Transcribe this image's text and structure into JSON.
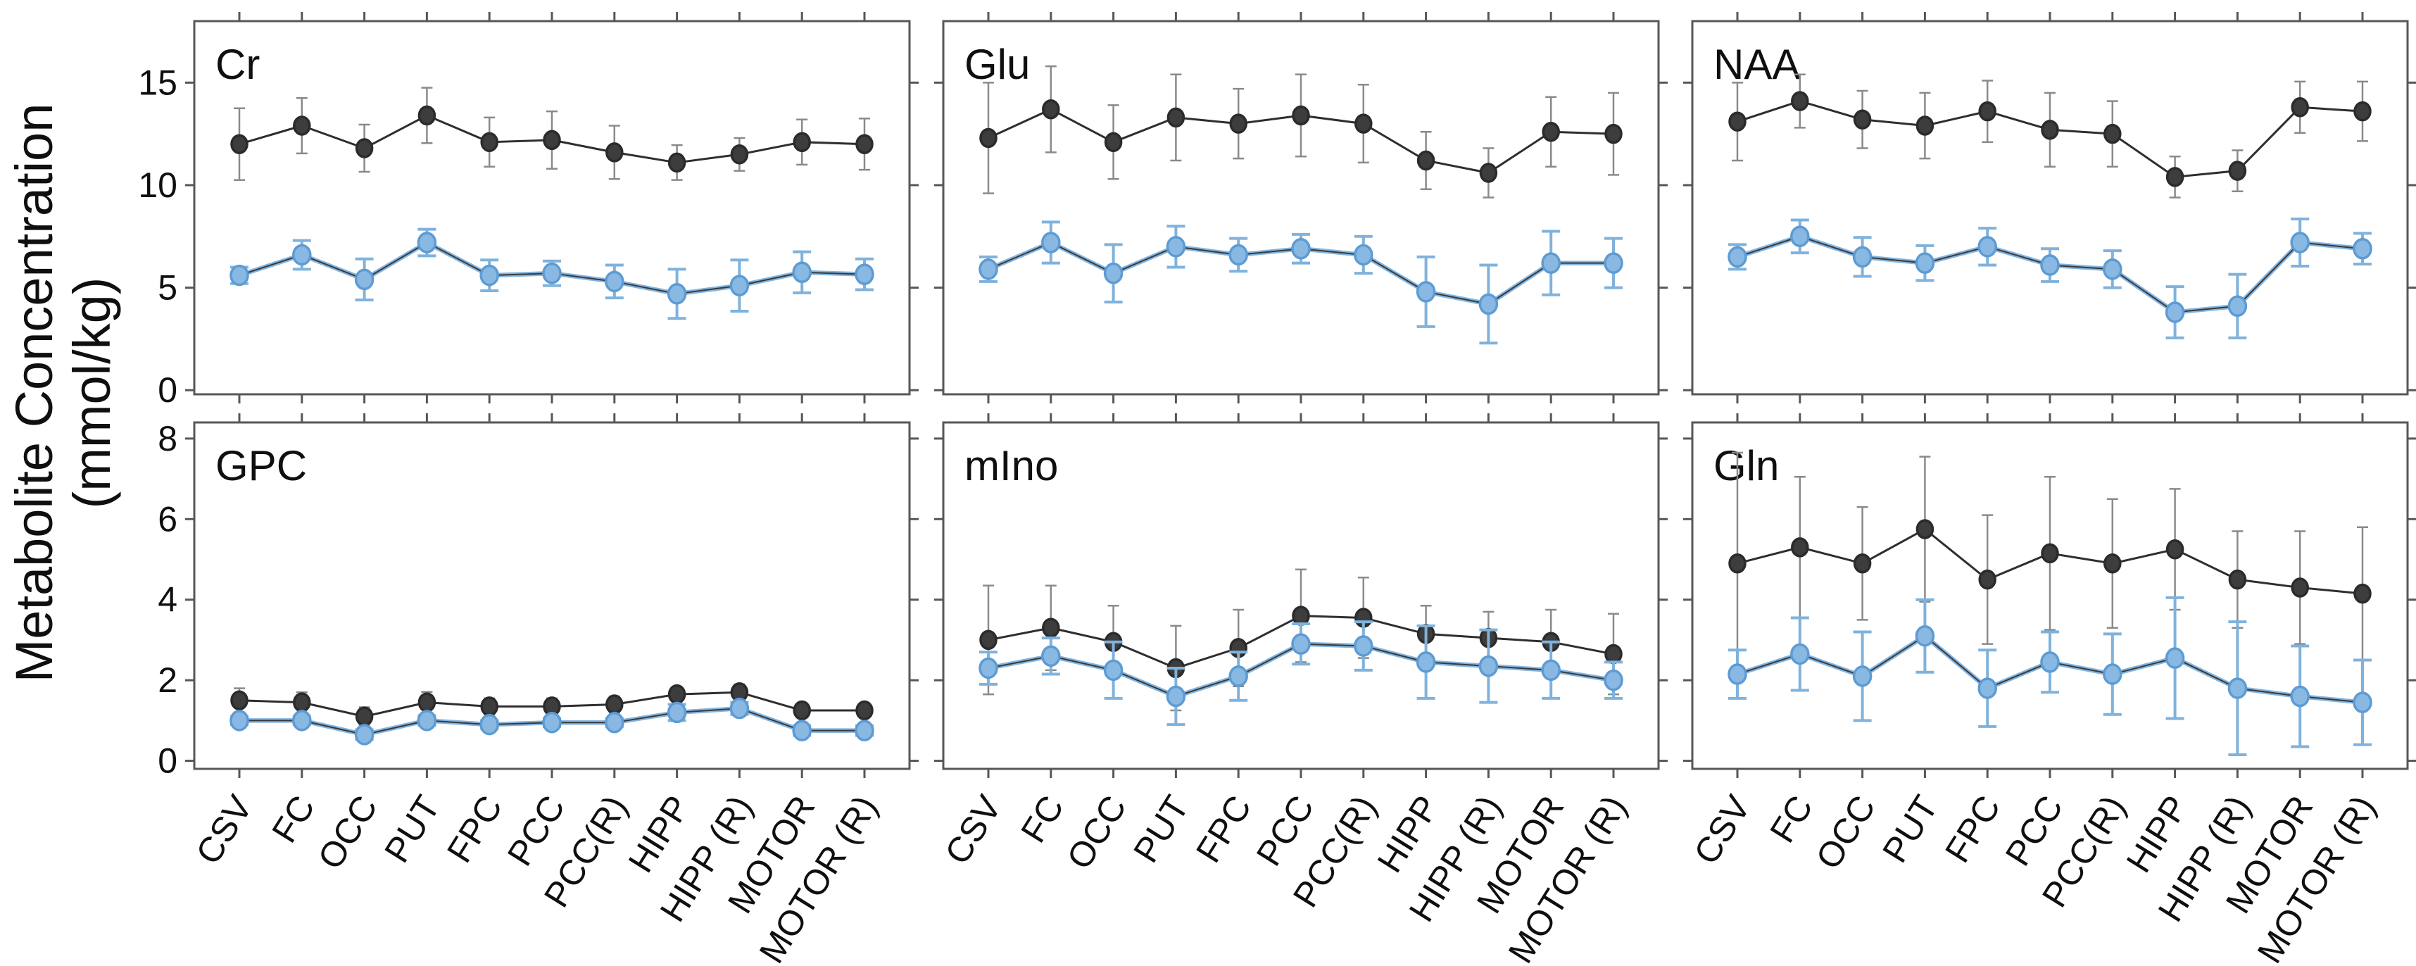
{
  "figure": {
    "y_axis_label_line1": "Metabolite Concentration",
    "y_axis_label_line2": "(mmol/kg)",
    "background_color": "#ffffff",
    "spine_color": "#575757",
    "series_style": {
      "series1_name": "dark",
      "series1_marker_color": "#3d3d3d",
      "series1_marker_edge": "#2b2b2b",
      "series1_line_color": "#2e2e2e",
      "series1_errorbar_color": "#8a8a8a",
      "series2_name": "blue",
      "series2_marker_color": "#89b9e3",
      "series2_marker_edge": "#5d9bd3",
      "series2_line_color": "#84b5e1",
      "series2_core_line_color": "#3a3a3a",
      "series2_errorbar_color": "#7fb2dc"
    }
  },
  "chart_data": [
    {
      "type": "line",
      "title": "Cr",
      "row": 0,
      "col": 0,
      "ylim": [
        -0.2,
        18.0
      ],
      "yticks": [
        0,
        5,
        10,
        15
      ],
      "show_ytick_labels": true,
      "show_xtick_labels": false,
      "grid": false,
      "categories": [
        "CSV",
        "FC",
        "OCC",
        "PUT",
        "FPC",
        "PCC",
        "PCC(R)",
        "HIPP",
        "HIPP (R)",
        "MOTOR",
        "MOTOR (R)"
      ],
      "series": [
        {
          "name": "dark",
          "values": [
            12.0,
            12.9,
            11.8,
            13.4,
            12.1,
            12.2,
            11.6,
            11.1,
            11.5,
            12.1,
            12.0
          ],
          "errors": [
            1.75,
            1.35,
            1.15,
            1.35,
            1.2,
            1.4,
            1.3,
            0.85,
            0.8,
            1.1,
            1.25
          ]
        },
        {
          "name": "blue",
          "values": [
            5.6,
            6.6,
            5.4,
            7.2,
            5.6,
            5.7,
            5.3,
            4.7,
            5.1,
            5.75,
            5.65
          ],
          "errors": [
            0.4,
            0.7,
            1.0,
            0.65,
            0.75,
            0.6,
            0.8,
            1.2,
            1.25,
            1.0,
            0.75
          ]
        }
      ]
    },
    {
      "type": "line",
      "title": "Glu",
      "row": 0,
      "col": 1,
      "ylim": [
        -0.2,
        18.0
      ],
      "yticks": [
        0,
        5,
        10,
        15
      ],
      "show_ytick_labels": false,
      "show_xtick_labels": false,
      "grid": false,
      "categories": [
        "CSV",
        "FC",
        "OCC",
        "PUT",
        "FPC",
        "PCC",
        "PCC(R)",
        "HIPP",
        "HIPP (R)",
        "MOTOR",
        "MOTOR (R)"
      ],
      "series": [
        {
          "name": "dark",
          "values": [
            12.3,
            13.7,
            12.1,
            13.3,
            13.0,
            13.4,
            13.0,
            11.2,
            10.6,
            12.6,
            12.5
          ],
          "errors": [
            2.7,
            2.1,
            1.8,
            2.1,
            1.7,
            2.0,
            1.9,
            1.4,
            1.2,
            1.7,
            2.0
          ]
        },
        {
          "name": "blue",
          "values": [
            5.9,
            7.2,
            5.7,
            7.0,
            6.6,
            6.9,
            6.6,
            4.8,
            4.2,
            6.2,
            6.2
          ],
          "errors": [
            0.6,
            1.0,
            1.4,
            1.0,
            0.8,
            0.7,
            0.9,
            1.7,
            1.9,
            1.55,
            1.2
          ]
        }
      ]
    },
    {
      "type": "line",
      "title": "NAA",
      "row": 0,
      "col": 2,
      "ylim": [
        -0.2,
        18.0
      ],
      "yticks": [
        0,
        5,
        10,
        15
      ],
      "show_ytick_labels": false,
      "show_xtick_labels": false,
      "grid": false,
      "categories": [
        "CSV",
        "FC",
        "OCC",
        "PUT",
        "FPC",
        "PCC",
        "PCC(R)",
        "HIPP",
        "HIPP (R)",
        "MOTOR",
        "MOTOR (R)"
      ],
      "series": [
        {
          "name": "dark",
          "values": [
            13.1,
            14.1,
            13.2,
            12.9,
            13.6,
            12.7,
            12.5,
            10.4,
            10.7,
            13.8,
            13.6
          ],
          "errors": [
            1.9,
            1.3,
            1.4,
            1.6,
            1.5,
            1.8,
            1.6,
            1.0,
            1.0,
            1.25,
            1.45
          ]
        },
        {
          "name": "blue",
          "values": [
            6.5,
            7.5,
            6.5,
            6.2,
            7.0,
            6.1,
            5.9,
            3.8,
            4.1,
            7.2,
            6.9
          ],
          "errors": [
            0.6,
            0.8,
            0.95,
            0.85,
            0.9,
            0.8,
            0.9,
            1.25,
            1.55,
            1.15,
            0.75
          ]
        }
      ]
    },
    {
      "type": "line",
      "title": "GPC",
      "row": 1,
      "col": 0,
      "ylim": [
        -0.2,
        8.4
      ],
      "yticks": [
        0,
        2,
        4,
        6,
        8
      ],
      "show_ytick_labels": true,
      "show_xtick_labels": true,
      "grid": false,
      "categories": [
        "CSV",
        "FC",
        "OCC",
        "PUT",
        "FPC",
        "PCC",
        "PCC(R)",
        "HIPP",
        "HIPP (R)",
        "MOTOR",
        "MOTOR (R)"
      ],
      "series": [
        {
          "name": "dark",
          "values": [
            1.5,
            1.45,
            1.1,
            1.45,
            1.35,
            1.35,
            1.4,
            1.65,
            1.7,
            1.25,
            1.25
          ],
          "errors": [
            0.3,
            0.25,
            0.23,
            0.26,
            0.2,
            0.2,
            0.2,
            0.15,
            0.2,
            0.15,
            0.15
          ]
        },
        {
          "name": "blue",
          "values": [
            1.0,
            1.0,
            0.65,
            1.0,
            0.9,
            0.95,
            0.95,
            1.2,
            1.3,
            0.75,
            0.75
          ],
          "errors": [
            0.1,
            0.1,
            0.12,
            0.12,
            0.1,
            0.1,
            0.1,
            0.2,
            0.15,
            0.12,
            0.12
          ]
        }
      ]
    },
    {
      "type": "line",
      "title": "mIno",
      "row": 1,
      "col": 1,
      "ylim": [
        -0.2,
        8.4
      ],
      "yticks": [
        0,
        2,
        4,
        6,
        8
      ],
      "show_ytick_labels": false,
      "show_xtick_labels": true,
      "grid": false,
      "categories": [
        "CSV",
        "FC",
        "OCC",
        "PUT",
        "FPC",
        "PCC",
        "PCC(R)",
        "HIPP",
        "HIPP (R)",
        "MOTOR",
        "MOTOR (R)"
      ],
      "series": [
        {
          "name": "dark",
          "values": [
            3.0,
            3.3,
            2.95,
            2.3,
            2.8,
            3.6,
            3.55,
            3.15,
            3.05,
            2.95,
            2.65
          ],
          "errors": [
            1.35,
            1.05,
            0.9,
            1.05,
            0.95,
            1.15,
            1.0,
            0.7,
            0.65,
            0.8,
            1.0
          ]
        },
        {
          "name": "blue",
          "values": [
            2.3,
            2.6,
            2.25,
            1.6,
            2.1,
            2.9,
            2.85,
            2.45,
            2.35,
            2.25,
            2.0
          ],
          "errors": [
            0.4,
            0.45,
            0.7,
            0.7,
            0.6,
            0.5,
            0.6,
            0.9,
            0.9,
            0.7,
            0.45
          ]
        }
      ]
    },
    {
      "type": "line",
      "title": "Gln",
      "row": 1,
      "col": 2,
      "ylim": [
        -0.2,
        8.4
      ],
      "yticks": [
        0,
        2,
        4,
        6,
        8
      ],
      "show_ytick_labels": false,
      "show_xtick_labels": true,
      "grid": false,
      "categories": [
        "CSV",
        "FC",
        "OCC",
        "PUT",
        "FPC",
        "PCC",
        "PCC(R)",
        "HIPP",
        "HIPP (R)",
        "MOTOR",
        "MOTOR (R)"
      ],
      "series": [
        {
          "name": "dark",
          "values": [
            4.9,
            5.3,
            4.9,
            5.75,
            4.5,
            5.15,
            4.9,
            5.25,
            4.5,
            4.3,
            4.15
          ],
          "errors": [
            2.75,
            1.75,
            1.4,
            1.8,
            1.6,
            1.9,
            1.6,
            1.5,
            1.2,
            1.4,
            1.65
          ]
        },
        {
          "name": "blue",
          "values": [
            2.15,
            2.65,
            2.1,
            3.1,
            1.8,
            2.45,
            2.15,
            2.55,
            1.8,
            1.6,
            1.45
          ],
          "errors": [
            0.6,
            0.9,
            1.1,
            0.9,
            0.95,
            0.75,
            1.0,
            1.5,
            1.65,
            1.25,
            1.05
          ]
        }
      ]
    }
  ]
}
